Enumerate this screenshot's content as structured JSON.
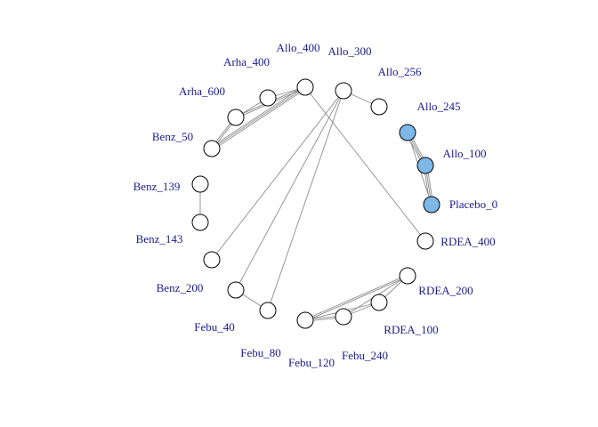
{
  "colors": {
    "label": "#1a1a8c",
    "edge": "#8c8c8c",
    "node_default": "#ffffff",
    "node_highlight": "#7db8e8"
  },
  "nodes": [
    {
      "id": "allo_400",
      "label": "Allo_400",
      "highlight": false
    },
    {
      "id": "allo_300",
      "label": "Allo_300",
      "highlight": false
    },
    {
      "id": "allo_256",
      "label": "Allo_256",
      "highlight": false
    },
    {
      "id": "allo_245",
      "label": "Allo_245",
      "highlight": true
    },
    {
      "id": "allo_100",
      "label": "Allo_100",
      "highlight": true
    },
    {
      "id": "placebo_0",
      "label": "Placebo_0",
      "highlight": true
    },
    {
      "id": "rdea_400",
      "label": "RDEA_400",
      "highlight": false
    },
    {
      "id": "rdea_200",
      "label": "RDEA_200",
      "highlight": false
    },
    {
      "id": "rdea_100",
      "label": "RDEA_100",
      "highlight": false
    },
    {
      "id": "febu_240",
      "label": "Febu_240",
      "highlight": false
    },
    {
      "id": "febu_120",
      "label": "Febu_120",
      "highlight": false
    },
    {
      "id": "febu_80",
      "label": "Febu_80",
      "highlight": false
    },
    {
      "id": "febu_40",
      "label": "Febu_40",
      "highlight": false
    },
    {
      "id": "benz_200",
      "label": "Benz_200",
      "highlight": false
    },
    {
      "id": "benz_143",
      "label": "Benz_143",
      "highlight": false
    },
    {
      "id": "benz_139",
      "label": "Benz_139",
      "highlight": false
    },
    {
      "id": "benz_50",
      "label": "Benz_50",
      "highlight": false
    },
    {
      "id": "arha_600",
      "label": "Arha_600",
      "highlight": false
    },
    {
      "id": "arha_400",
      "label": "Arha_400",
      "highlight": false
    }
  ],
  "edges": [
    {
      "from": "allo_245",
      "to": "allo_100",
      "multiplicity": 3
    },
    {
      "from": "allo_100",
      "to": "placebo_0",
      "multiplicity": 3
    },
    {
      "from": "allo_245",
      "to": "placebo_0",
      "multiplicity": 1
    },
    {
      "from": "allo_300",
      "to": "allo_256",
      "multiplicity": 1
    },
    {
      "from": "allo_400",
      "to": "rdea_400",
      "multiplicity": 1
    },
    {
      "from": "allo_400",
      "to": "arha_400",
      "multiplicity": 1
    },
    {
      "from": "allo_400",
      "to": "arha_600",
      "multiplicity": 2
    },
    {
      "from": "allo_400",
      "to": "benz_50",
      "multiplicity": 3
    },
    {
      "from": "arha_400",
      "to": "arha_600",
      "multiplicity": 1
    },
    {
      "from": "arha_600",
      "to": "benz_50",
      "multiplicity": 2
    },
    {
      "from": "allo_300",
      "to": "benz_200",
      "multiplicity": 1
    },
    {
      "from": "allo_300",
      "to": "febu_40",
      "multiplicity": 1
    },
    {
      "from": "allo_300",
      "to": "febu_80",
      "multiplicity": 1
    },
    {
      "from": "benz_139",
      "to": "benz_143",
      "multiplicity": 1
    },
    {
      "from": "febu_40",
      "to": "febu_80",
      "multiplicity": 1
    },
    {
      "from": "febu_120",
      "to": "febu_240",
      "multiplicity": 2
    },
    {
      "from": "febu_120",
      "to": "rdea_100",
      "multiplicity": 1
    },
    {
      "from": "febu_120",
      "to": "rdea_200",
      "multiplicity": 2
    },
    {
      "from": "febu_240",
      "to": "rdea_100",
      "multiplicity": 1
    },
    {
      "from": "febu_240",
      "to": "rdea_200",
      "multiplicity": 1
    },
    {
      "from": "rdea_100",
      "to": "rdea_200",
      "multiplicity": 1
    }
  ]
}
